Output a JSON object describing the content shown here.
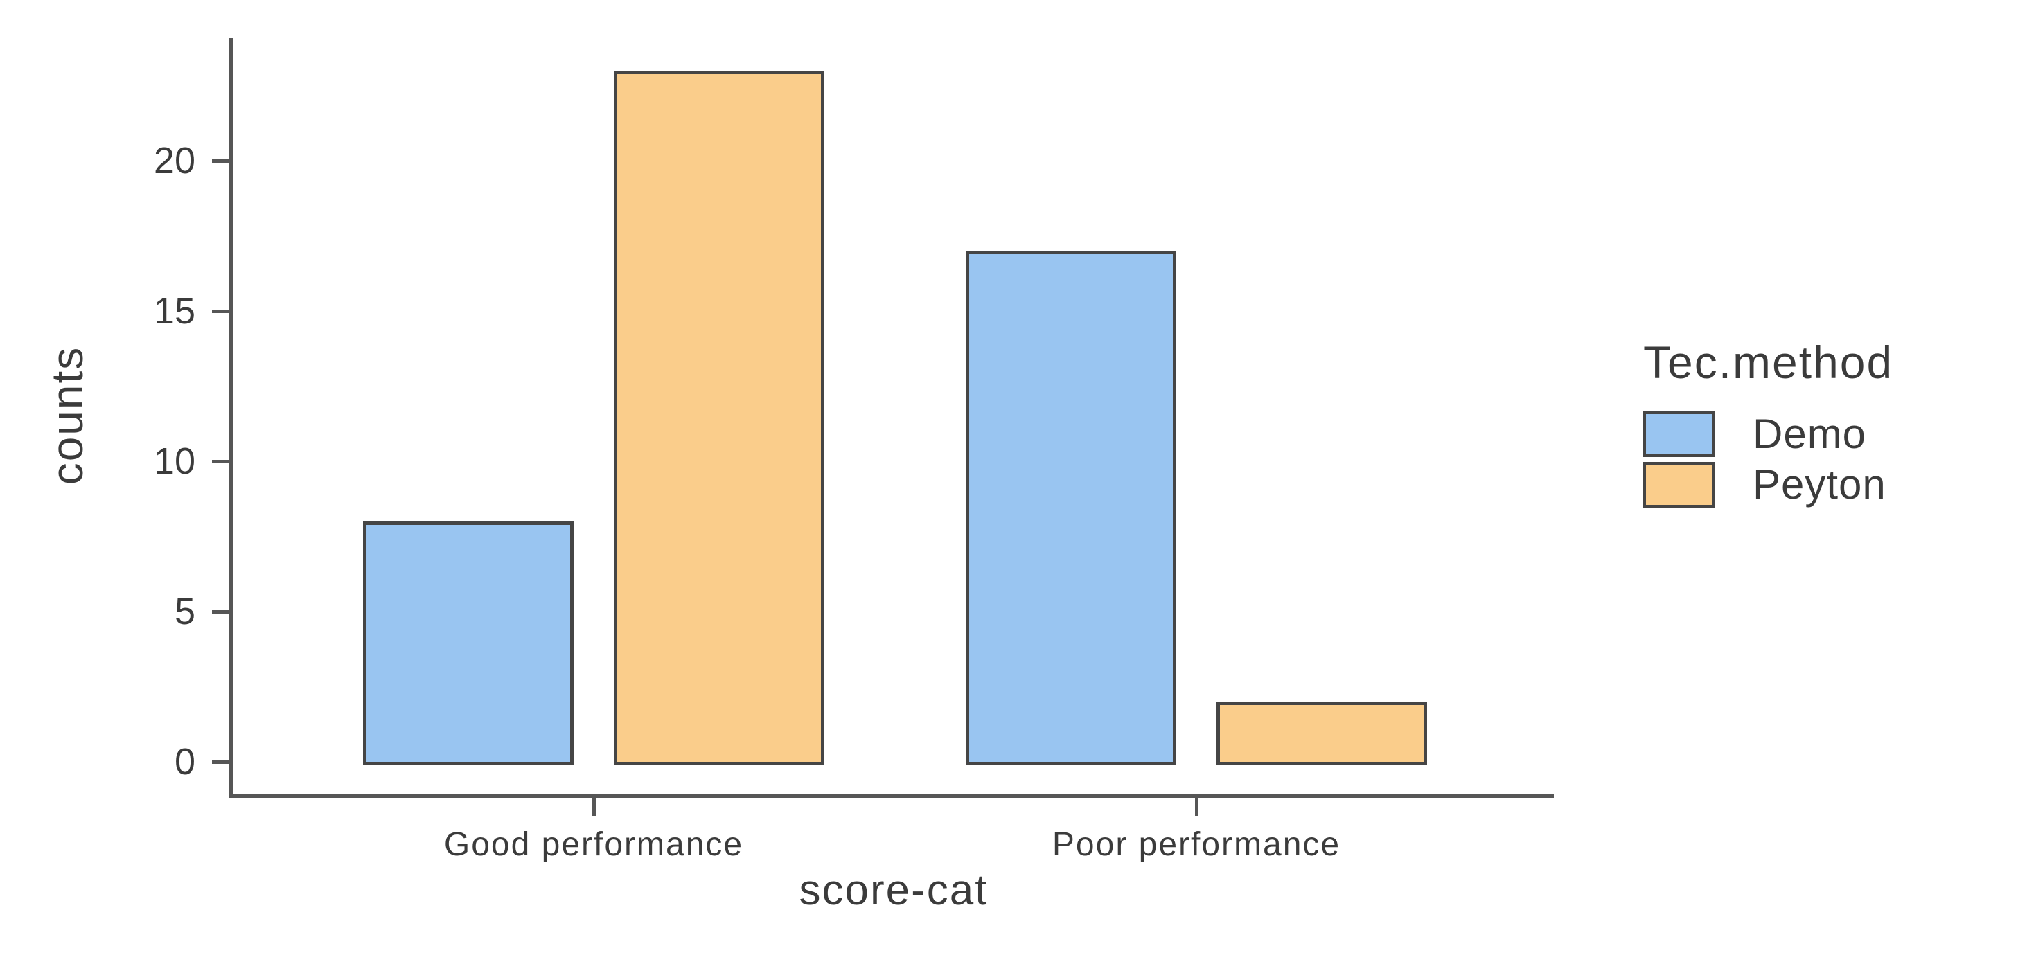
{
  "chart_data": {
    "type": "bar",
    "title": "",
    "categories": [
      "Good performance",
      "Poor performance"
    ],
    "series": [
      {
        "name": "Demo",
        "color": "#99C5F1",
        "values": [
          8,
          17
        ]
      },
      {
        "name": "Peyton",
        "color": "#FACD8B",
        "values": [
          23,
          2
        ]
      }
    ],
    "xlabel": "score-cat",
    "ylabel": "counts",
    "yticks": [
      0,
      5,
      10,
      15,
      20
    ],
    "ylim": [
      0,
      24
    ],
    "grid": false,
    "legend_title": "Tec.method",
    "legend_position": "right",
    "colors": {
      "bar_border": "#454545",
      "axis": "#565656",
      "text": "#3b3b3b",
      "background": "#ffffff"
    }
  }
}
